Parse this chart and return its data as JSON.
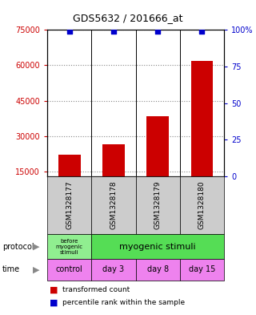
{
  "title": "GDS5632 / 201666_at",
  "samples": [
    "GSM1328177",
    "GSM1328178",
    "GSM1328179",
    "GSM1328180"
  ],
  "red_values": [
    22000,
    26500,
    38500,
    62000
  ],
  "blue_values": [
    99,
    99,
    99,
    99
  ],
  "ylim_left": [
    13000,
    75000
  ],
  "ylim_right": [
    0,
    100
  ],
  "yticks_left": [
    15000,
    30000,
    45000,
    60000,
    75000
  ],
  "yticks_right": [
    0,
    25,
    50,
    75,
    100
  ],
  "ytick_labels_right": [
    "0",
    "25",
    "50",
    "75",
    "100%"
  ],
  "time_labels": [
    "control",
    "day 3",
    "day 8",
    "day 15"
  ],
  "time_color": "#ee82ee",
  "bar_color_red": "#cc0000",
  "bar_color_blue": "#0000cc",
  "sample_bg": "#cccccc",
  "legend_red": "transformed count",
  "legend_blue": "percentile rank within the sample",
  "left_tick_color": "#cc0000",
  "right_tick_color": "#0000cc",
  "protocol_col1_color": "#90ee90",
  "protocol_col234_color": "#55dd55"
}
